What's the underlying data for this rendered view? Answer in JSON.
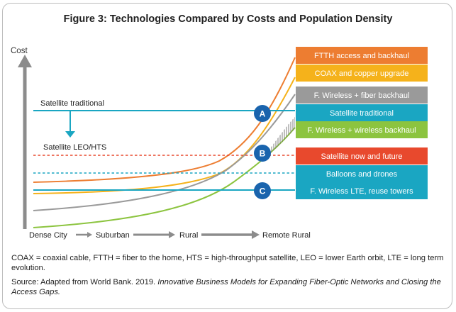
{
  "figure": {
    "title": "Figure 3: Technologies Compared by Costs and Population Density"
  },
  "axis": {
    "y_label": "Cost",
    "x_stages": [
      "Dense City",
      "Suburban",
      "Rural",
      "Remote Rural"
    ]
  },
  "lines": {
    "satellite_traditional": "Satellite traditional",
    "satellite_leo": "Satellite LEO/HTS"
  },
  "markers": [
    "A",
    "B",
    "C"
  ],
  "legend": [
    {
      "label": "FTTH access and backhaul",
      "color": "#ed7d31"
    },
    {
      "label": "COAX and copper upgrade",
      "color": "#f5b21b"
    },
    {
      "label": "F. Wireless + fiber backhaul",
      "color": "#9a9a9a"
    },
    {
      "label": "Satellite traditional",
      "color": "#1aa6c2"
    },
    {
      "label": "F. Wireless + wireless backhaul",
      "color": "#8cc43f"
    },
    {
      "label": "Satellite now and future",
      "color": "#e8492d"
    },
    {
      "label": "Balloons and drones",
      "color": "#1aa6c2"
    },
    {
      "label": "F. Wireless LTE, reuse towers",
      "color": "#1aa6c2"
    }
  ],
  "colors": {
    "teal": "#1aa6c2",
    "marker_blue": "#1a64ad",
    "axis_gray": "#8c8c8c"
  },
  "notes": {
    "abbreviations": "COAX = coaxial cable, FTTH = fiber to the home, HTS = high-throughput satellite, LEO = lower Earth orbit, LTE = long term evolution.",
    "source_prefix": "Source: Adapted from World Bank. 2019. ",
    "source_italic": "Innovative Business Models for Expanding Fiber-Optic Networks and Closing the Access Gaps."
  }
}
